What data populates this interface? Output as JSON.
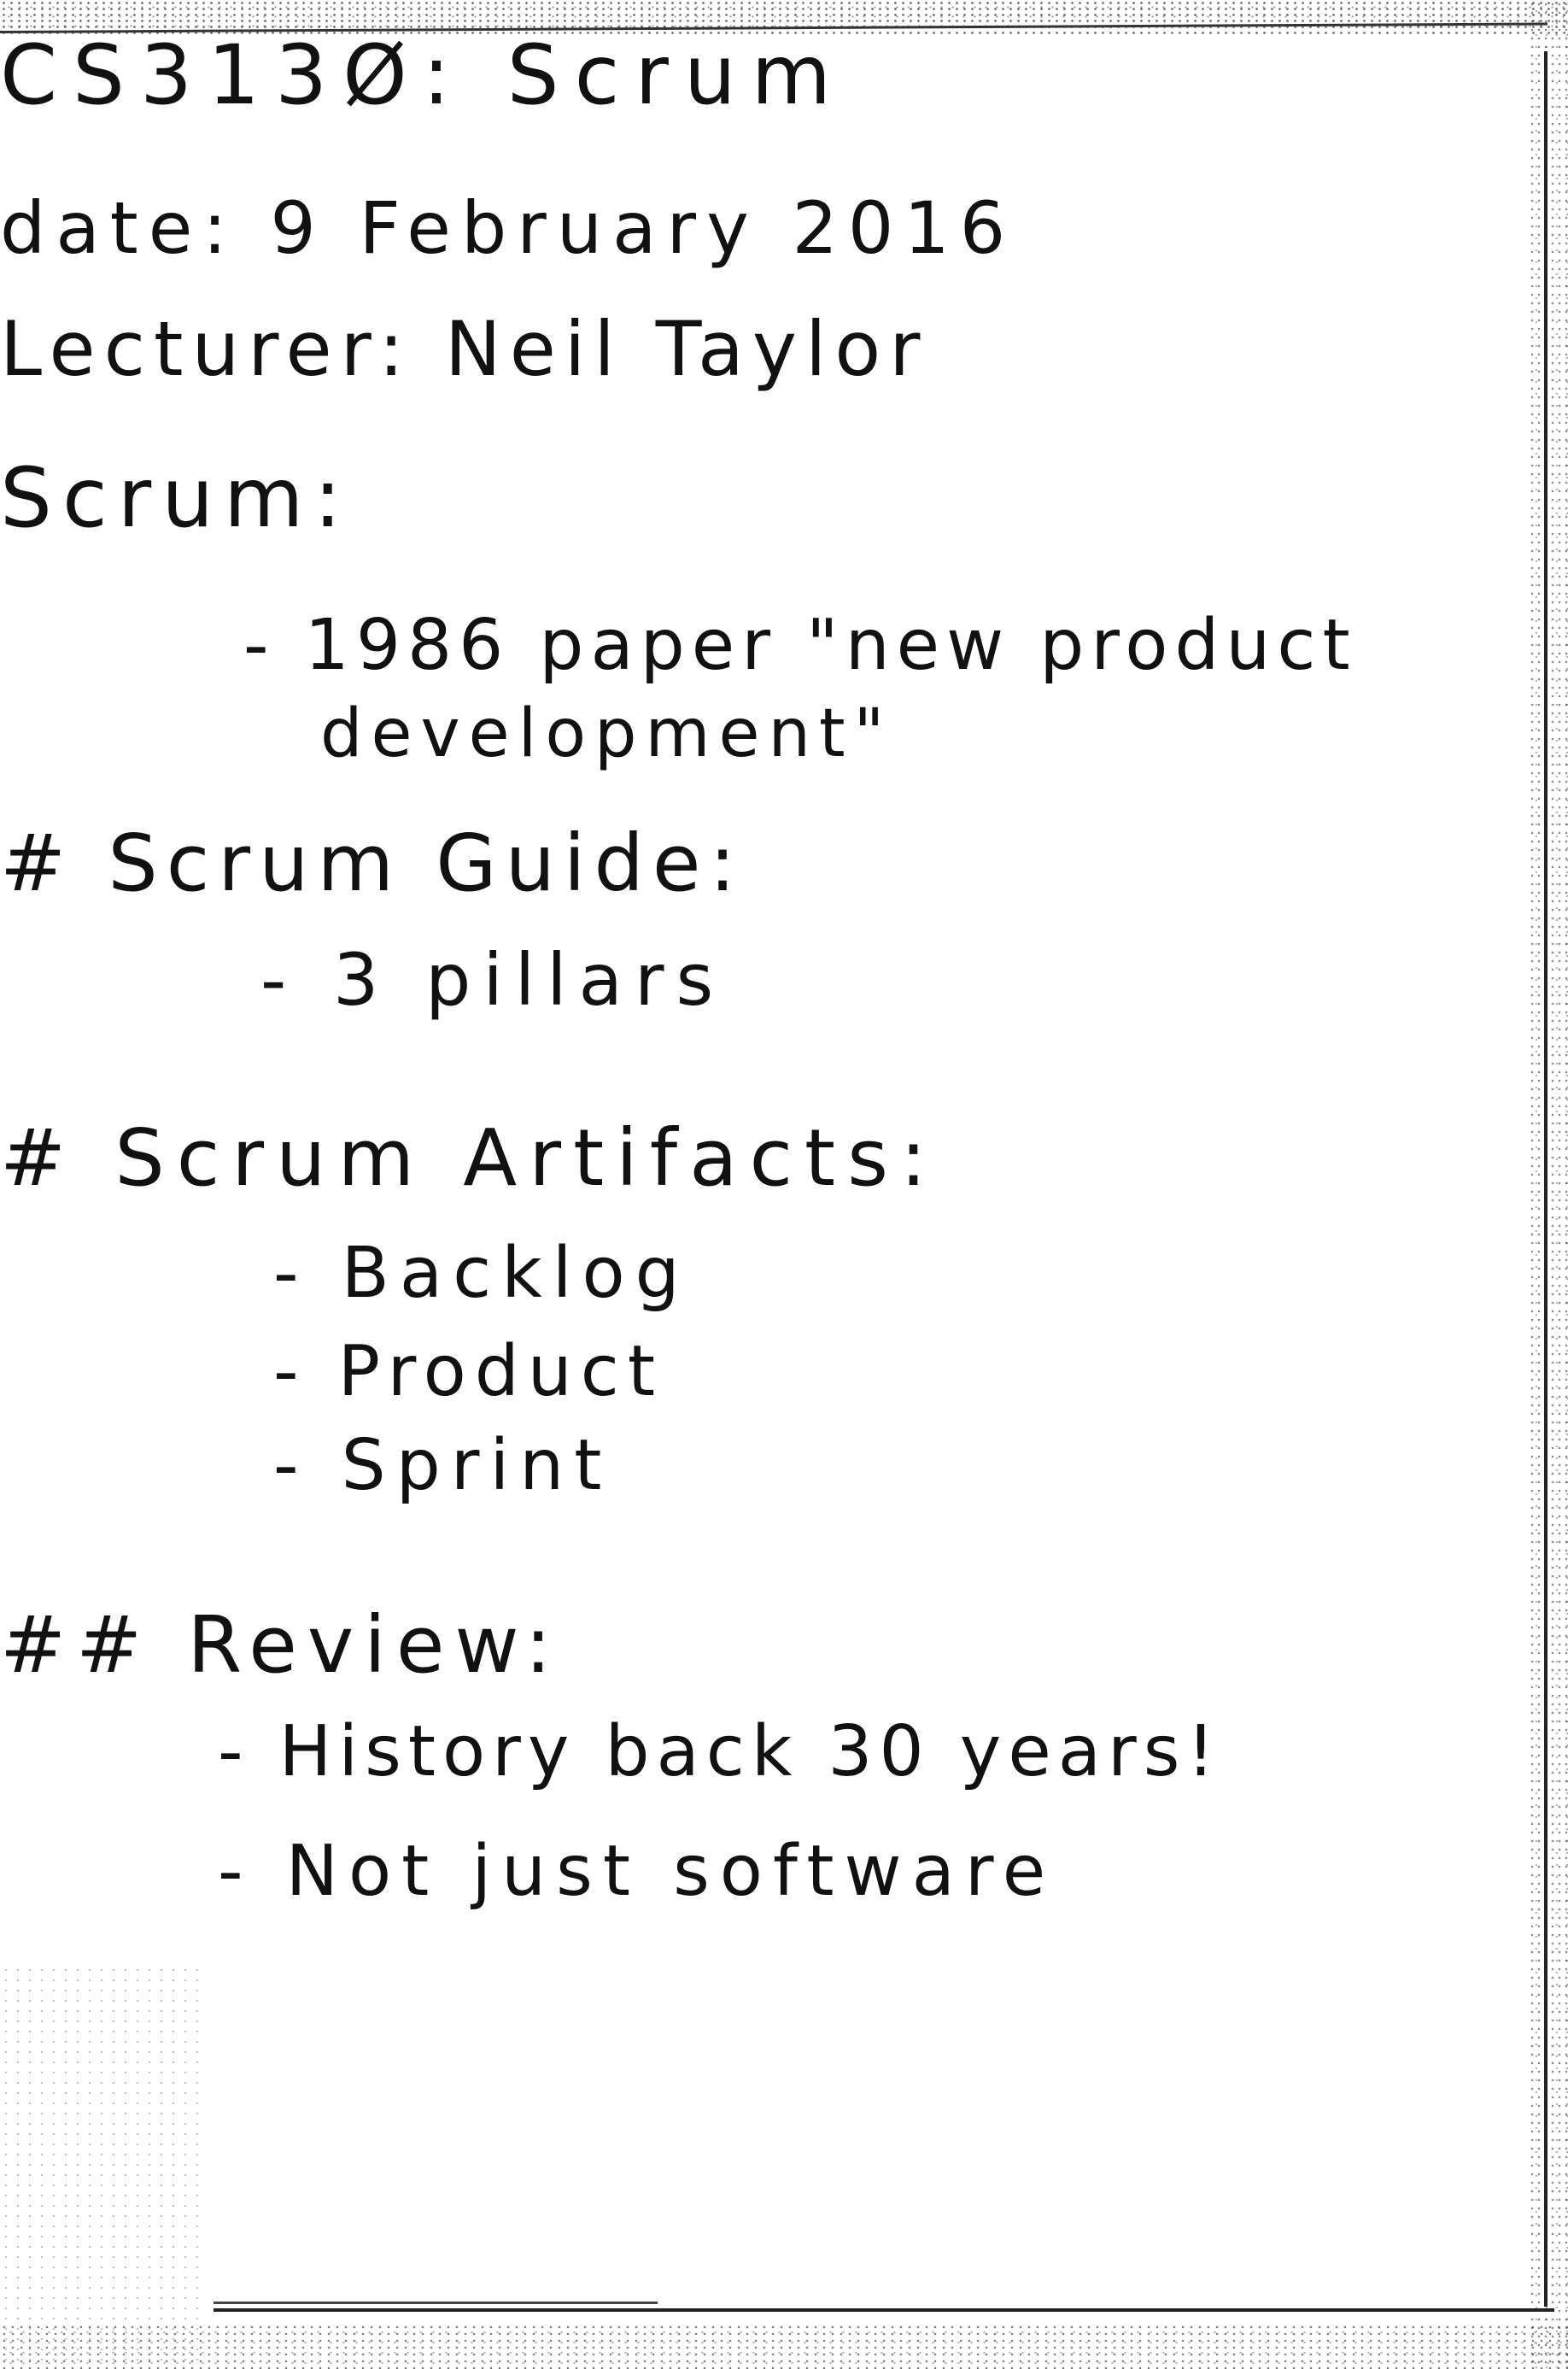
{
  "header": {
    "title": "CS313Ø: Scrum",
    "date": "date: 9 February 2016",
    "lecturer": "Lecturer: Neil Taylor"
  },
  "sections": [
    {
      "heading": "Scrum:",
      "items": [
        "- 1986 paper \"new product",
        "development\""
      ]
    },
    {
      "heading": "# Scrum Guide:",
      "items": [
        "- 3 pillars"
      ]
    },
    {
      "heading": "# Scrum Artifacts:",
      "items": [
        "- Backlog",
        "- Product",
        "- Sprint"
      ]
    },
    {
      "heading": "## Review:",
      "items": [
        "- History back 30 years!",
        "- Not just software"
      ]
    }
  ]
}
